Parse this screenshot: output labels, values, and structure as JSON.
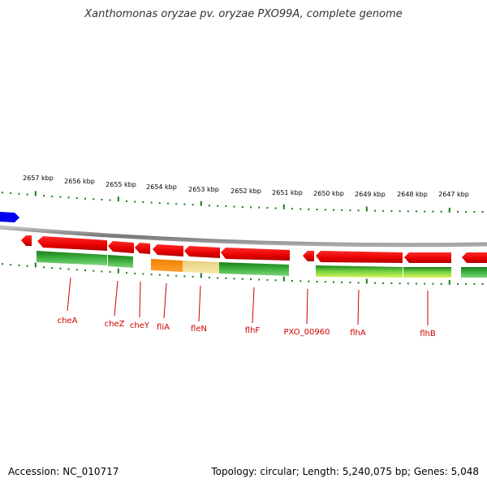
{
  "title": "Xanthomonas oryzae pv. oryzae PXO99A, complete genome",
  "footer": {
    "accession": "Accession: NC_010717",
    "summary": "Topology: circular; Length: 5,240,075 bp; Genes: 5,048"
  },
  "scale_labels": [
    "2657 kbp",
    "2656 kbp",
    "2655 kbp",
    "2654 kbp",
    "2653 kbp",
    "2652 kbp",
    "2651 kbp",
    "2650 kbp",
    "2649 kbp",
    "2648 kbp",
    "2647 kbp"
  ],
  "genes": [
    {
      "name": "cheA",
      "label_kbp": 2656.8,
      "start_kbp": 2657.1,
      "end_kbp": 2655.4
    },
    {
      "name": "cheZ",
      "label_kbp": 2655.1,
      "start_kbp": 2655.4,
      "end_kbp": 2654.8
    },
    {
      "name": "cheY",
      "label_kbp": 2654.5,
      "start_kbp": 2654.7,
      "end_kbp": 2654.35
    },
    {
      "name": "fliA",
      "label_kbp": 2653.9,
      "start_kbp": 2654.3,
      "end_kbp": 2653.55
    },
    {
      "name": "fleN",
      "label_kbp": 2653.0,
      "start_kbp": 2653.55,
      "end_kbp": 2652.65
    },
    {
      "name": "flhF",
      "label_kbp": 2651.8,
      "start_kbp": 2652.65,
      "end_kbp": 2650.95
    },
    {
      "name": "PXO_00960",
      "label_kbp": 2650.5,
      "start_kbp": 2650.7,
      "end_kbp": 2650.4
    },
    {
      "name": "flhA",
      "label_kbp": 2649.2,
      "start_kbp": 2650.35,
      "end_kbp": 2648.1
    },
    {
      "name": "flhB",
      "label_kbp": 2647.6,
      "start_kbp": 2648.05,
      "end_kbp": 2646.9
    }
  ],
  "colors": {
    "gene_red": "#e60000",
    "backbone": "#888888",
    "tick_green": "#1a7a1a",
    "label_red": "#cc0000",
    "edge_blue": "#0000ee"
  }
}
